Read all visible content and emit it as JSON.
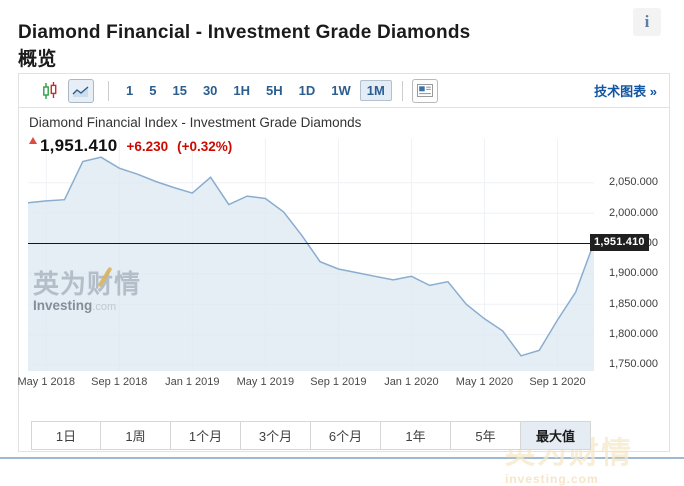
{
  "page": {
    "title": "Diamond Financial - Investment Grade Diamonds概览",
    "info_icon": "i"
  },
  "toolbar": {
    "chart_types": [
      {
        "name": "candlestick",
        "selected": false
      },
      {
        "name": "area-line",
        "selected": true
      }
    ],
    "intervals": [
      {
        "label": "1",
        "selected": false
      },
      {
        "label": "5",
        "selected": false
      },
      {
        "label": "15",
        "selected": false
      },
      {
        "label": "30",
        "selected": false
      },
      {
        "label": "1H",
        "selected": false
      },
      {
        "label": "5H",
        "selected": false
      },
      {
        "label": "1D",
        "selected": false
      },
      {
        "label": "1W",
        "selected": false
      },
      {
        "label": "1M",
        "selected": true
      }
    ],
    "technical_link": "技术图表 »"
  },
  "chart_header": {
    "title": "Diamond Financial Index - Investment Grade Diamonds",
    "price": "1,951.410",
    "change": "+6.230",
    "change_pct": "(+0.32%)",
    "direction": "up"
  },
  "chart_data": {
    "type": "area",
    "title": "Diamond Financial Index - Investment Grade Diamonds",
    "x": [
      "Apr 2018",
      "May 2018",
      "Jun 2018",
      "Jul 2018",
      "Aug 2018",
      "Sep 2018",
      "Oct 2018",
      "Nov 2018",
      "Dec 2018",
      "Jan 2019",
      "Feb 2019",
      "Mar 2019",
      "Apr 2019",
      "May 2019",
      "Jun 2019",
      "Jul 2019",
      "Aug 2019",
      "Sep 2019",
      "Oct 2019",
      "Nov 2019",
      "Dec 2019",
      "Jan 2020",
      "Feb 2020",
      "Mar 2020",
      "Apr 2020",
      "May 2020",
      "Jun 2020",
      "Jul 2020",
      "Aug 2020",
      "Sep 2020",
      "Oct 2020",
      "Nov 2020"
    ],
    "values": [
      2017,
      2020,
      2022,
      2085,
      2092,
      2074,
      2064,
      2052,
      2042,
      2033,
      2059,
      2014,
      2028,
      2024,
      2002,
      1963,
      1920,
      1908,
      1902,
      1896,
      1890,
      1896,
      1881,
      1887,
      1850,
      1826,
      1806,
      1765,
      1774,
      1824,
      1870,
      1951.41
    ],
    "x_ticks": [
      "May 1 2018",
      "Sep 1 2018",
      "Jan 1 2019",
      "May 1 2019",
      "Sep 1 2019",
      "Jan 1 2020",
      "May 1 2020",
      "Sep 1 2020"
    ],
    "x_tick_indices": [
      1,
      5,
      9,
      13,
      17,
      21,
      25,
      29
    ],
    "y_ticks": [
      "2,050.000",
      "2,000.000",
      "1,950.000",
      "1,900.000",
      "1,850.000",
      "1,800.000",
      "1,750.000"
    ],
    "y_tick_values": [
      2050,
      2000,
      1950,
      1900,
      1850,
      1800,
      1750
    ],
    "ylim": [
      1740,
      2122
    ],
    "current_value": 1951.41,
    "current_value_label": "1,951.410",
    "line_color": "#8aadcf",
    "fill_color": "#dfe9f3",
    "grid": true,
    "legend": "none"
  },
  "watermark": {
    "cn": "英为财情",
    "en": "Investing",
    "dot_com": ".com"
  },
  "footer_watermark": {
    "cn": "英为财情",
    "en": "investing.com"
  },
  "range_buttons": [
    {
      "label": "1日",
      "selected": false
    },
    {
      "label": "1周",
      "selected": false
    },
    {
      "label": "1个月",
      "selected": false
    },
    {
      "label": "3个月",
      "selected": false
    },
    {
      "label": "6个月",
      "selected": false
    },
    {
      "label": "1年",
      "selected": false
    },
    {
      "label": "5年",
      "selected": false
    },
    {
      "label": "最大值",
      "selected": true
    }
  ]
}
